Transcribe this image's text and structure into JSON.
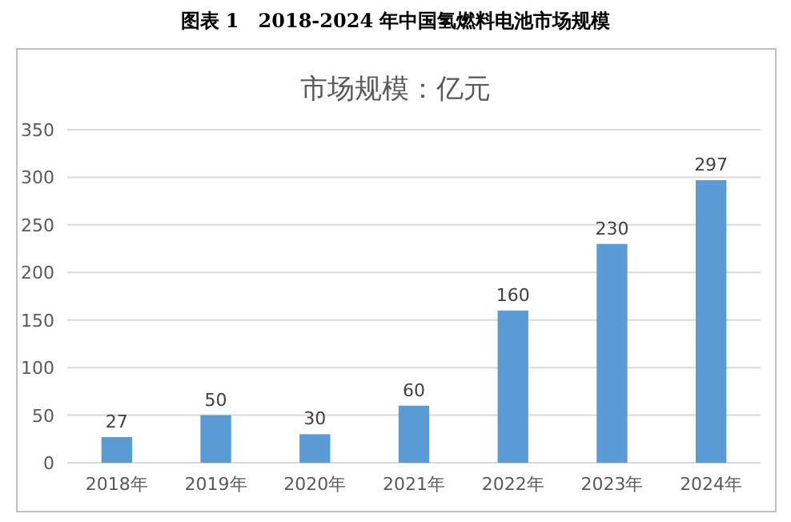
{
  "chart_data": {
    "type": "bar",
    "title": "图表 1　2018-2024 年中国氢燃料电池市场规模",
    "subtitle": "市场规模：亿元",
    "categories": [
      "2018年",
      "2019年",
      "2020年",
      "2021年",
      "2022年",
      "2023年",
      "2024年"
    ],
    "values": [
      27,
      50,
      30,
      60,
      160,
      230,
      297
    ],
    "color": "#5b9bd5",
    "ylim": [
      0,
      350
    ],
    "yticks": [
      0,
      50,
      100,
      150,
      200,
      250,
      300,
      350
    ],
    "grid": "y",
    "data_labels": true
  }
}
